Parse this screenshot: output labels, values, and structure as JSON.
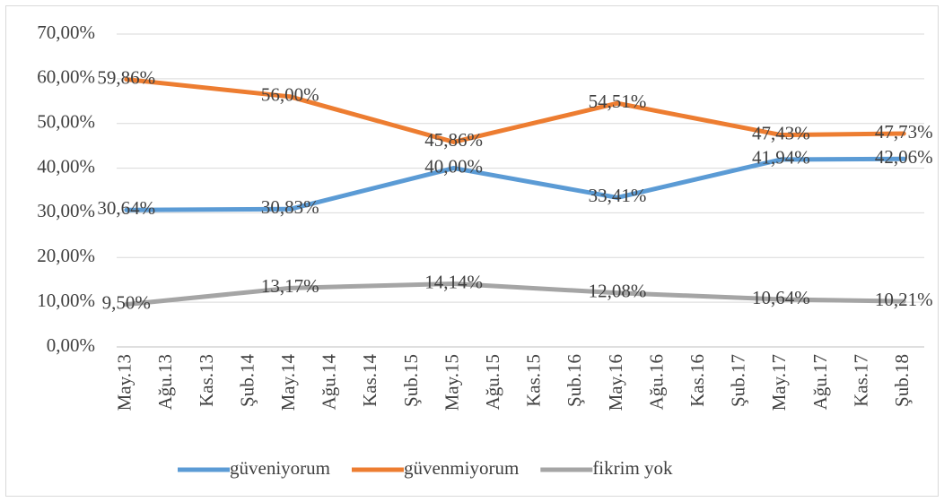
{
  "chart_data": {
    "type": "line",
    "categories": [
      "May.13",
      "Ağu.13",
      "Kas.13",
      "Şub.14",
      "May.14",
      "Ağu.14",
      "Kas.14",
      "Şub.15",
      "May.15",
      "Ağu.15",
      "Kas.15",
      "Şub.16",
      "May.16",
      "Ağu.16",
      "Kas.16",
      "Şub.17",
      "May.17",
      "Ağu.17",
      "Kas.17",
      "Şub.18"
    ],
    "series": [
      {
        "name": "güveniyorum",
        "color": "#5b9bd5",
        "values": [
          30.64,
          null,
          null,
          null,
          30.83,
          null,
          null,
          null,
          40.0,
          null,
          null,
          null,
          33.41,
          null,
          null,
          null,
          41.94,
          null,
          null,
          42.06
        ],
        "value_labels": [
          "30,64%",
          null,
          null,
          null,
          "30,83%",
          null,
          null,
          null,
          "40,00%",
          null,
          null,
          null,
          "33,41%",
          null,
          null,
          null,
          "41,94%",
          null,
          null,
          "42,06%"
        ]
      },
      {
        "name": "güvenmiyorum",
        "color": "#ed7d31",
        "values": [
          59.86,
          null,
          null,
          null,
          56.0,
          null,
          null,
          null,
          45.86,
          null,
          null,
          null,
          54.51,
          null,
          null,
          null,
          47.43,
          null,
          null,
          47.73
        ],
        "value_labels": [
          "59,86%",
          null,
          null,
          null,
          "56,00%",
          null,
          null,
          null,
          "45,86%",
          null,
          null,
          null,
          "54,51%",
          null,
          null,
          null,
          "47,43%",
          null,
          null,
          "47,73%"
        ]
      },
      {
        "name": "fikrim yok",
        "color": "#a5a5a5",
        "values": [
          9.5,
          null,
          null,
          null,
          13.17,
          null,
          null,
          null,
          14.14,
          null,
          null,
          null,
          12.08,
          null,
          null,
          null,
          10.64,
          null,
          null,
          10.21
        ],
        "value_labels": [
          "9,50%",
          null,
          null,
          null,
          "13,17%",
          null,
          null,
          null,
          "14,14%",
          null,
          null,
          null,
          "12,08%",
          null,
          null,
          null,
          "10,64%",
          null,
          null,
          "10,21%"
        ]
      }
    ],
    "ylim": [
      0,
      70
    ],
    "yticks": [
      {
        "value": 0,
        "label": "0,00%"
      },
      {
        "value": 10,
        "label": "10,00%"
      },
      {
        "value": 20,
        "label": "20,00%"
      },
      {
        "value": 30,
        "label": "30,00%"
      },
      {
        "value": 40,
        "label": "40,00%"
      },
      {
        "value": 50,
        "label": "50,00%"
      },
      {
        "value": 60,
        "label": "60,00%"
      },
      {
        "value": 70,
        "label": "70,00%"
      }
    ],
    "grid": true,
    "connect_gaps": true,
    "legend": "bottom"
  }
}
